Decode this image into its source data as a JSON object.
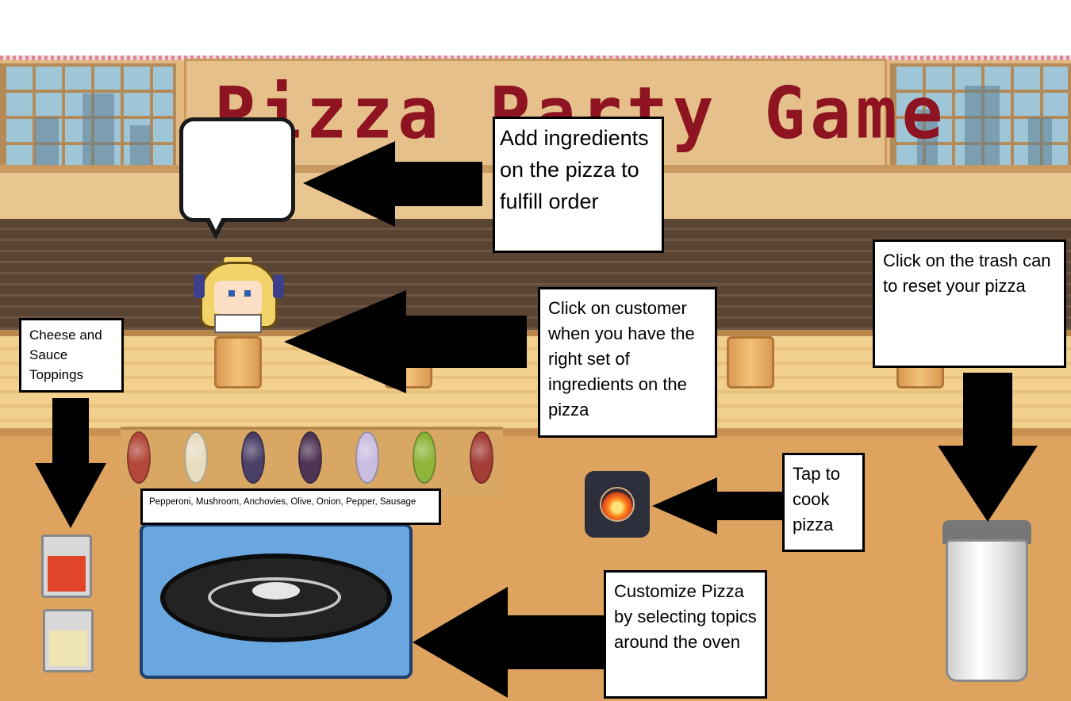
{
  "game": {
    "title": "Pizza Party Game"
  },
  "instructions": {
    "order": "Add ingredients on the pizza to fulfill order",
    "customer": "Click on customer when you have the right set of ingredients on the pizza",
    "trash": "Click on the trash can to reset your pizza",
    "cheese_sauce": "Cheese and Sauce Toppings",
    "toppings_list": "Pepperoni, Mushroom, Anchovies, Olive, Onion, Pepper, Sausage",
    "cook": "Tap to cook pizza",
    "customize": "Customize Pizza by selecting topics around the oven"
  },
  "toppings": [
    {
      "name": "pepperoni",
      "color": "#b3473a"
    },
    {
      "name": "mushroom",
      "color": "#e8dcc0"
    },
    {
      "name": "anchovies",
      "color": "#4a3f66"
    },
    {
      "name": "olive",
      "color": "#4f3455"
    },
    {
      "name": "onion",
      "color": "#c9bde0"
    },
    {
      "name": "pepper",
      "color": "#8fb43a"
    },
    {
      "name": "sausage",
      "color": "#a33d36"
    }
  ],
  "colors": {
    "title": "#8e1422",
    "sauce": "#e0452a",
    "cheese": "#efe5b4",
    "oven": "#6aa6e0"
  }
}
